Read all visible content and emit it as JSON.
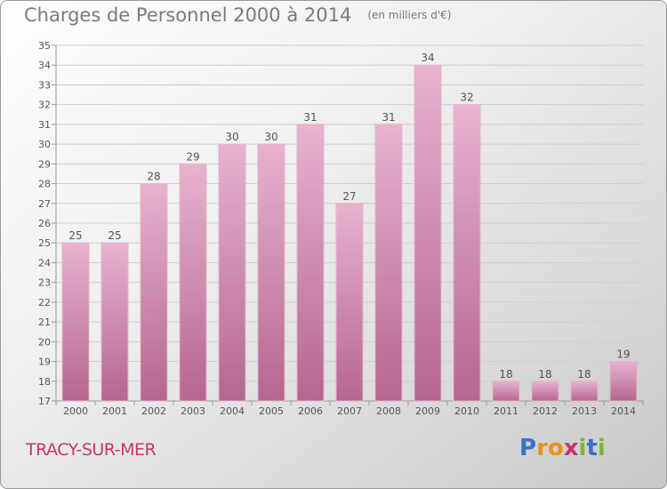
{
  "title": "Charges de Personnel 2000 à 2014",
  "unit_note": "(en milliers d'€)",
  "commune": "TRACY-SUR-MER",
  "logo": {
    "letters": [
      "P",
      "r",
      "o",
      "x",
      "i",
      "t",
      "i"
    ],
    "colors": [
      "#3a6fc4",
      "#e8901c",
      "#e8901c",
      "#c8356e",
      "#7ab83a",
      "#3a6fc4",
      "#7ab83a"
    ]
  },
  "colors": {
    "bar": "#d58ab0",
    "bar_light": "#e7b3cf",
    "bar_dark": "#b56690",
    "grid": "#cfcfcf",
    "text": "#555555"
  },
  "chart_data": {
    "type": "bar",
    "title": "Charges de Personnel 2000 à 2014",
    "xlabel": "",
    "ylabel": "",
    "categories": [
      "2000",
      "2001",
      "2002",
      "2003",
      "2004",
      "2005",
      "2006",
      "2007",
      "2008",
      "2009",
      "2010",
      "2011",
      "2012",
      "2013",
      "2014"
    ],
    "values": [
      25,
      25,
      28,
      29,
      30,
      30,
      31,
      27,
      31,
      34,
      32,
      18,
      18,
      18,
      19
    ],
    "ylim": [
      17,
      35
    ],
    "yticks": [
      17,
      18,
      19,
      20,
      21,
      22,
      23,
      24,
      25,
      26,
      27,
      28,
      29,
      30,
      31,
      32,
      33,
      34,
      35
    ],
    "grid": true
  }
}
